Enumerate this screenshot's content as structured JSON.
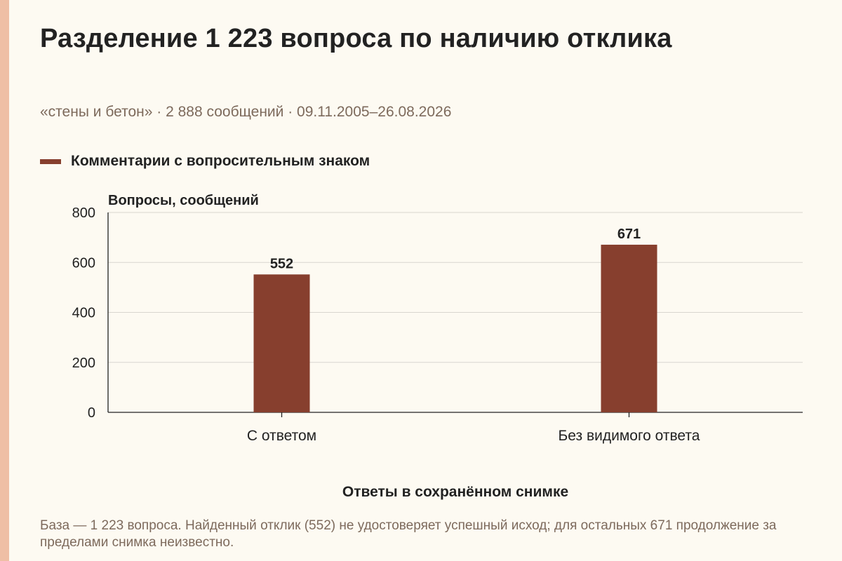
{
  "title": "Разделение 1 223 вопроса по наличию отклика",
  "subtitle": "«стены и бетон» · 2 888 сообщений · 09.11.2005–26.08.2026",
  "footnote": "База — 1 223 вопроса. Найденный отклик (552) не удостоверяет успешный исход; для остальных 671 продолжение за пределами снимка неизвестно.",
  "colors": {
    "bar": "#873f2e",
    "accent": "#efbfa5",
    "muted_text": "#7d6a5c"
  },
  "chart_data": {
    "type": "bar",
    "categories": [
      "С ответом",
      "Без видимого ответа"
    ],
    "series": [
      {
        "name": "Комментарии с вопросительным знаком",
        "values": [
          552,
          671
        ]
      }
    ],
    "ylabel": "Вопросы, сообщений",
    "xlabel": "Ответы в сохранённом снимке",
    "ylim": [
      0,
      800
    ],
    "yticks": [
      0,
      200,
      400,
      600,
      800
    ],
    "grid": true,
    "legend_position": "top-left",
    "data_labels": true
  }
}
